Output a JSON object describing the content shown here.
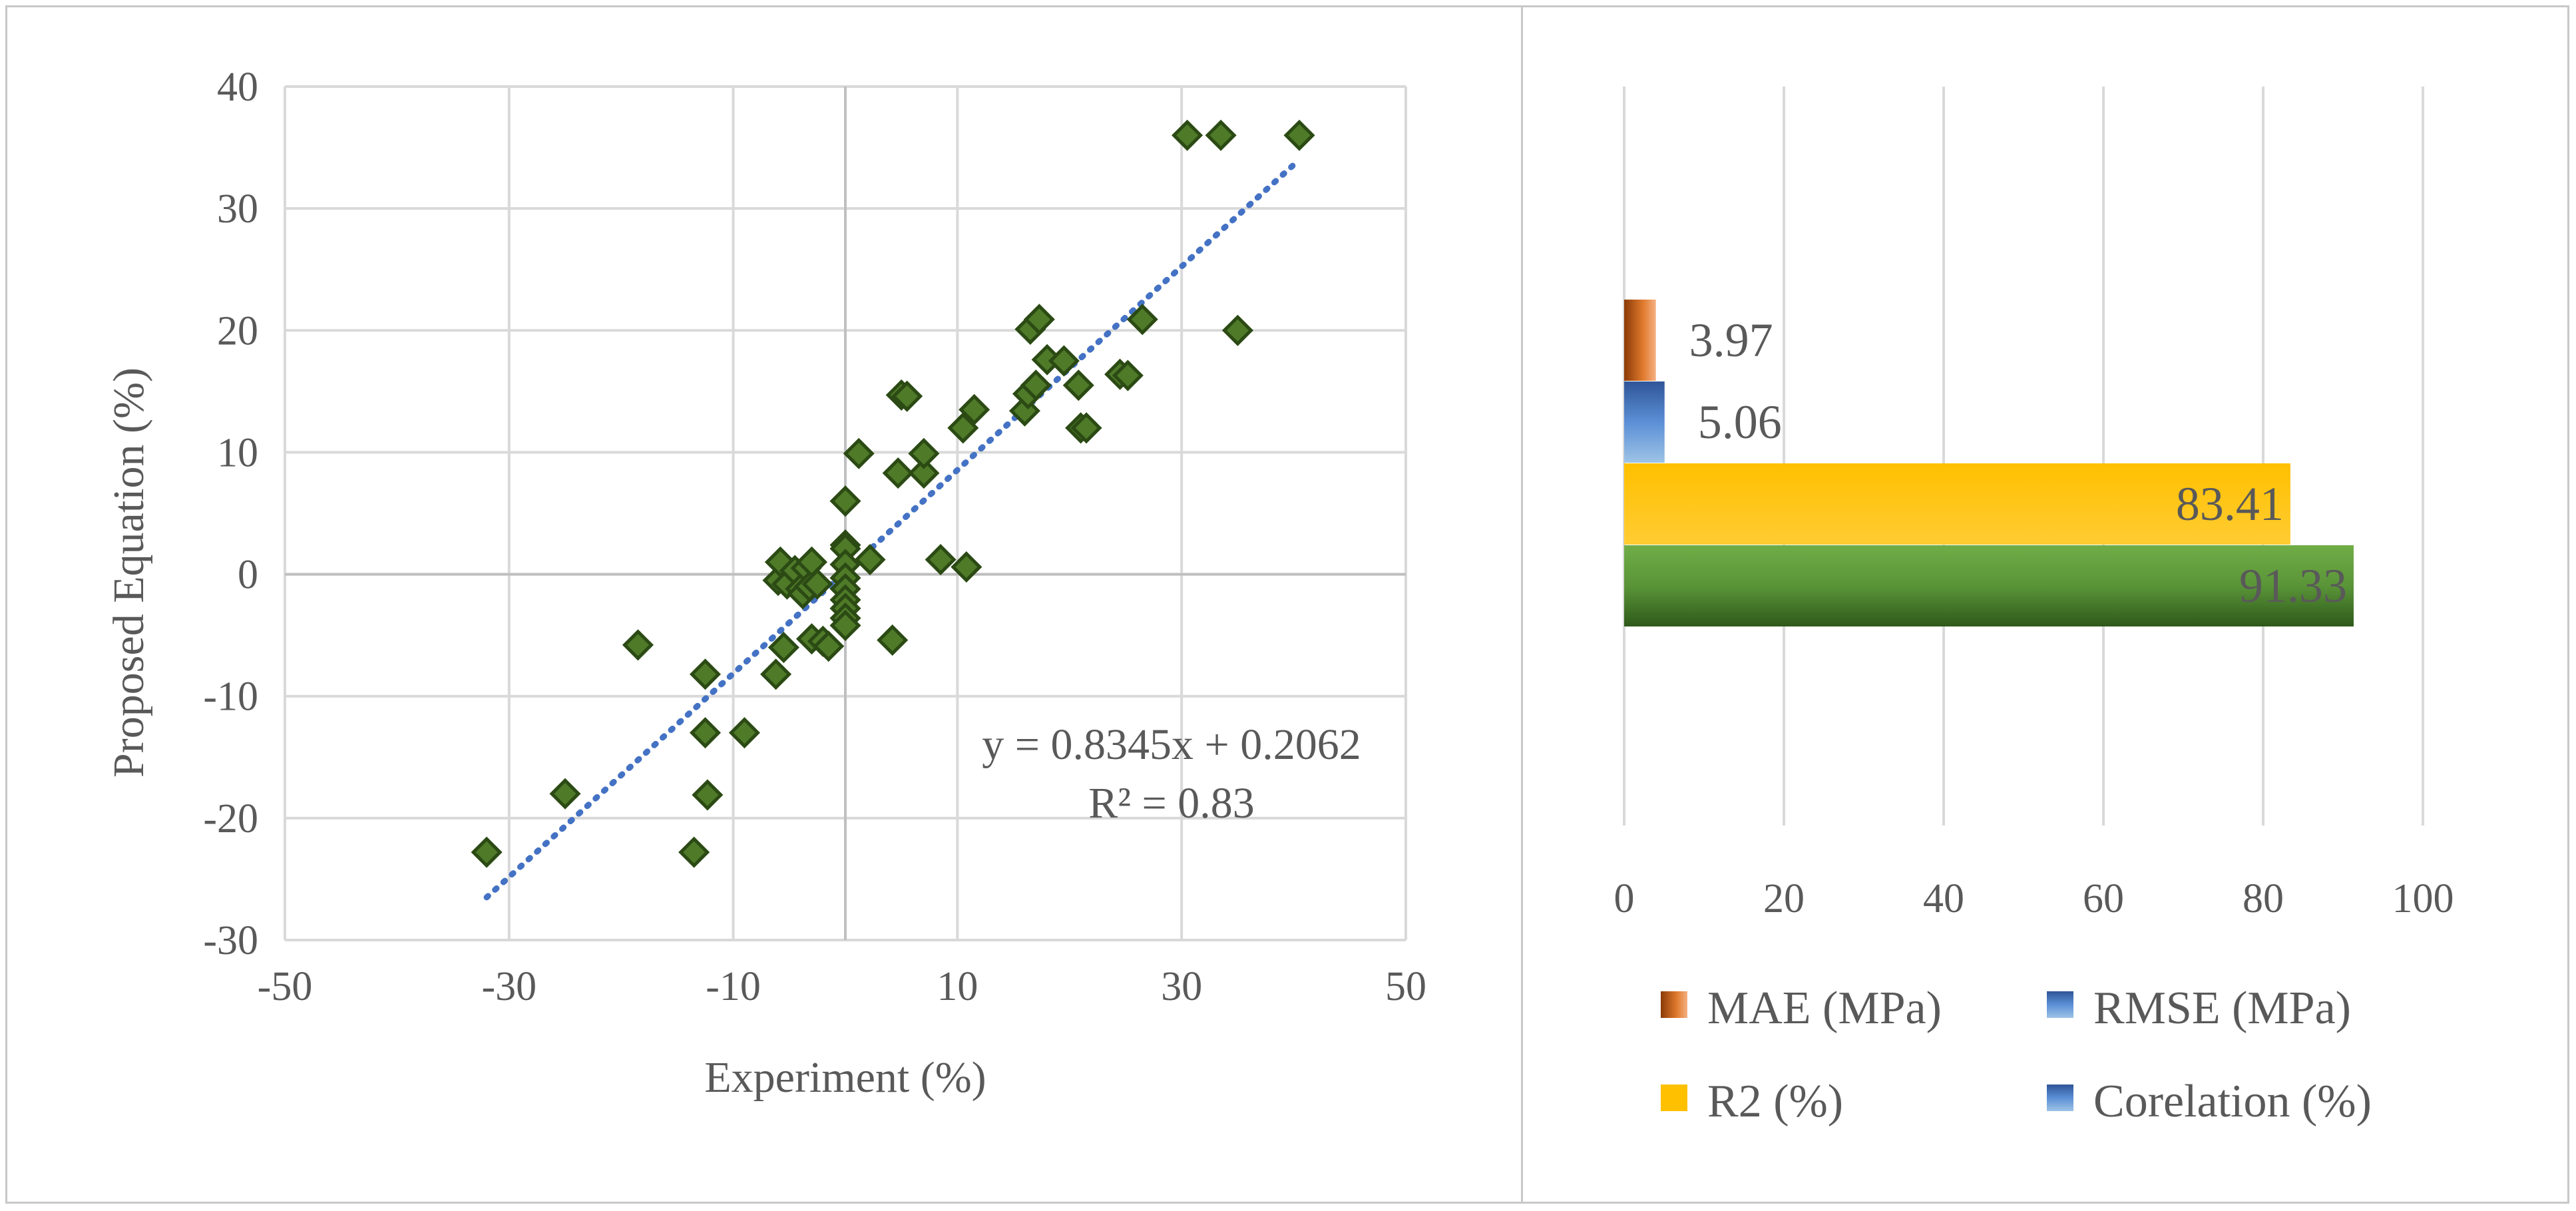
{
  "chart_data": [
    {
      "type": "scatter",
      "xlabel": "Experiment (%)",
      "ylabel": "Proposed Equation (%)",
      "xlim": [
        -50,
        50
      ],
      "ylim": [
        -30,
        40
      ],
      "xticks": [
        "-50",
        "-30",
        "-10",
        "10",
        "30",
        "50"
      ],
      "yticks": [
        "-30",
        "-20",
        "-10",
        "0",
        "10",
        "20",
        "30",
        "40"
      ],
      "grid": true,
      "marker_color": "#4f7a28",
      "trendline": {
        "slope": 0.8345,
        "intercept": 0.2062,
        "x_range": [
          -32,
          40.5
        ],
        "color": "#4472c4"
      },
      "equation": "y = 0.8345x + 0.2062",
      "r2_label": "R² = 0.83",
      "points": [
        [
          -32,
          -22.8
        ],
        [
          -25,
          -18
        ],
        [
          -18.5,
          -5.8
        ],
        [
          -13.5,
          -22.8
        ],
        [
          -12.5,
          -13
        ],
        [
          -12.5,
          -8.2
        ],
        [
          -12.3,
          -18.1
        ],
        [
          -9,
          -13
        ],
        [
          -6.2,
          -8.2
        ],
        [
          -6,
          -0.5
        ],
        [
          -5.8,
          1
        ],
        [
          -5.5,
          -6
        ],
        [
          -5.2,
          -0.8
        ],
        [
          -4.5,
          0.3
        ],
        [
          -4,
          -1.2
        ],
        [
          -3.8,
          -1.6
        ],
        [
          -3.5,
          0.5
        ],
        [
          -3.2,
          -1
        ],
        [
          -3,
          1
        ],
        [
          -3,
          -5.3
        ],
        [
          -2.5,
          -0.8
        ],
        [
          -2,
          -5.5
        ],
        [
          -1.5,
          -5.9
        ],
        [
          0,
          6
        ],
        [
          0,
          2.4
        ],
        [
          0,
          2.1
        ],
        [
          0,
          0.8
        ],
        [
          0,
          -0.3
        ],
        [
          0,
          -1.2
        ],
        [
          0,
          -2.1
        ],
        [
          0,
          -2.8
        ],
        [
          0,
          -3.6
        ],
        [
          0,
          -4.2
        ],
        [
          1.2,
          9.9
        ],
        [
          2.2,
          1.2
        ],
        [
          4.2,
          -5.4
        ],
        [
          4.7,
          8.3
        ],
        [
          5,
          14.7
        ],
        [
          5.5,
          14.6
        ],
        [
          7,
          8.3
        ],
        [
          7,
          9.9
        ],
        [
          8.5,
          1.2
        ],
        [
          10.5,
          12
        ],
        [
          10.8,
          0.6
        ],
        [
          11.5,
          13.5
        ],
        [
          16,
          13.4
        ],
        [
          16.3,
          14.8
        ],
        [
          16.5,
          20.1
        ],
        [
          17,
          15.5
        ],
        [
          17.3,
          20.9
        ],
        [
          18,
          17.6
        ],
        [
          19.5,
          17.5
        ],
        [
          20.8,
          15.5
        ],
        [
          21,
          12
        ],
        [
          21.5,
          12
        ],
        [
          24.5,
          16.4
        ],
        [
          25.2,
          16.3
        ],
        [
          26.5,
          20.9
        ],
        [
          30.5,
          36
        ],
        [
          33.5,
          36
        ],
        [
          35,
          20
        ],
        [
          40.5,
          36
        ]
      ]
    },
    {
      "type": "bar",
      "orientation": "horizontal",
      "xlim": [
        0,
        100
      ],
      "xticks": [
        "0",
        "20",
        "40",
        "60",
        "80",
        "100"
      ],
      "grid": true,
      "legend_position": "bottom",
      "series": [
        {
          "name": "MAE (MPa)",
          "value": 3.97,
          "label": "3.97",
          "color": "#c55a11"
        },
        {
          "name": "RMSE (MPa)",
          "value": 5.06,
          "label": "5.06",
          "color": "#4472c4"
        },
        {
          "name": "R2 (%)",
          "value": 83.41,
          "label": "83.41",
          "color": "#ffc000"
        },
        {
          "name": "Corelation (%)",
          "value": 91.33,
          "label": "91.33",
          "color": "#70ad47"
        }
      ]
    }
  ]
}
